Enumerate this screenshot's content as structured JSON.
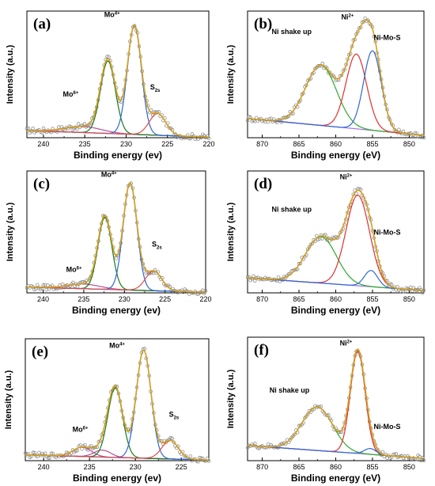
{
  "chart_data": [
    {
      "type": "line",
      "panel": "(a)",
      "xlabel": "Binding energy (ev)",
      "ylabel": "Intensity (a.u.)",
      "xlim": [
        242,
        220
      ],
      "xticks": [
        240,
        235,
        230,
        225,
        220
      ],
      "ylim": [
        0,
        1.05
      ],
      "background": {
        "start": 0.06,
        "end": 0.005
      },
      "peaks": [
        {
          "label": "Mo6+",
          "center": 235.2,
          "amp": 0.05,
          "width": 2.2,
          "color": "#b0509a"
        },
        {
          "label": "Mo4+",
          "center": 232.2,
          "amp": 0.6,
          "width": 0.9,
          "color": "#1a7a1a"
        },
        {
          "label": "Mo4+",
          "center": 229.0,
          "amp": 0.9,
          "width": 0.85,
          "color": "#2d67d8"
        },
        {
          "label": "S2s",
          "center": 226.2,
          "amp": 0.18,
          "width": 1.0,
          "color": "#e04a4a"
        }
      ],
      "annotations": [
        {
          "text": "Mo",
          "sup": "6+",
          "sub": "",
          "x": 236.7,
          "y": 0.34
        },
        {
          "text": "Mo",
          "sup": "4+",
          "sub": "",
          "x": 231.7,
          "y": 1.0
        },
        {
          "text": "S",
          "sup": "",
          "sub": "2s",
          "x": 226.5,
          "y": 0.4
        }
      ]
    },
    {
      "type": "line",
      "panel": "(b)",
      "xlabel": "Binding energy (eV)",
      "ylabel": "Intensity (a.u.)",
      "xlim": [
        872,
        848
      ],
      "xticks": [
        870,
        865,
        860,
        855,
        850
      ],
      "ylim": [
        0,
        1.05
      ],
      "background": {
        "start": 0.16,
        "end": 0.02
      },
      "peaks": [
        {
          "label": "Ni shake up",
          "center": 862,
          "amp": 0.5,
          "width": 2.1,
          "color": "#2fa82f"
        },
        {
          "label": "Ni2+",
          "center": 857.2,
          "amp": 0.62,
          "width": 1.4,
          "color": "#e03030"
        },
        {
          "label": "Ni-Mo-S",
          "center": 855.0,
          "amp": 0.66,
          "width": 1.2,
          "color": "#2d67d8"
        }
      ],
      "annotations": [
        {
          "text": "Ni shake up",
          "sup": "",
          "sub": "",
          "x": 866.0,
          "y": 0.86
        },
        {
          "text": "Ni",
          "sup": "2+",
          "sub": "",
          "x": 858.4,
          "y": 0.98
        },
        {
          "text": "Ni-Mo-S",
          "sup": "",
          "sub": "",
          "x": 853.0,
          "y": 0.81
        }
      ]
    },
    {
      "type": "line",
      "panel": "(c)",
      "xlabel": "Binding energy (ev)",
      "ylabel": "Intensity (a.u.)",
      "xlim": [
        242,
        220
      ],
      "xticks": [
        240,
        235,
        230,
        225,
        220
      ],
      "ylim": [
        0,
        1.05
      ],
      "background": {
        "start": 0.05,
        "end": 0.005
      },
      "peaks": [
        {
          "label": "Mo6+",
          "center": 235.0,
          "amp": 0.04,
          "width": 2.0,
          "color": "#b0509a"
        },
        {
          "label": "Mo4+",
          "center": 232.4,
          "amp": 0.62,
          "width": 0.85,
          "color": "#1a7a1a"
        },
        {
          "label": "Mo4+",
          "center": 229.3,
          "amp": 0.92,
          "width": 0.85,
          "color": "#2d67d8"
        },
        {
          "label": "S2s",
          "center": 226.4,
          "amp": 0.17,
          "width": 1.0,
          "color": "#e04a4a"
        }
      ],
      "annotations": [
        {
          "text": "Mo",
          "sup": "6+",
          "sub": "",
          "x": 236.2,
          "y": 0.18
        },
        {
          "text": "Mo",
          "sup": "4+",
          "sub": "",
          "x": 231.9,
          "y": 1.0
        },
        {
          "text": "S",
          "sup": "",
          "sub": "2s",
          "x": 226.0,
          "y": 0.4
        }
      ]
    },
    {
      "type": "line",
      "panel": "(d)",
      "xlabel": "Binding energy (eV)",
      "ylabel": "Intensity (a.u.)",
      "xlim": [
        872,
        848
      ],
      "xticks": [
        870,
        865,
        860,
        855,
        850
      ],
      "ylim": [
        0,
        1.05
      ],
      "background": {
        "start": 0.13,
        "end": 0.02
      },
      "peaks": [
        {
          "label": "Ni shake up",
          "center": 862,
          "amp": 0.4,
          "width": 2.1,
          "color": "#2fa82f"
        },
        {
          "label": "Ni2+",
          "center": 857.0,
          "amp": 0.78,
          "width": 1.6,
          "color": "#e03030"
        },
        {
          "label": "Ni-Mo-S",
          "center": 855.2,
          "amp": 0.14,
          "width": 0.9,
          "color": "#2d67d8"
        }
      ],
      "annotations": [
        {
          "text": "Ni shake up",
          "sup": "",
          "sub": "",
          "x": 866.0,
          "y": 0.7
        },
        {
          "text": "Ni",
          "sup": "2+",
          "sub": "",
          "x": 858.6,
          "y": 0.98
        },
        {
          "text": "Ni-Mo-S",
          "sup": "",
          "sub": "",
          "x": 853.0,
          "y": 0.5
        }
      ]
    },
    {
      "type": "line",
      "panel": "(e)",
      "xlabel": "Binding energy (ev)",
      "ylabel": "Intensity (a.u.)",
      "xlim": [
        242,
        222
      ],
      "xticks": [
        240,
        235,
        230,
        225
      ],
      "ylim": [
        0,
        1.05
      ],
      "background": {
        "start": 0.05,
        "end": 0.005
      },
      "peaks": [
        {
          "label": "Mo6+",
          "center": 235.8,
          "amp": 0.08,
          "width": 1.0,
          "color": "#b0509a"
        },
        {
          "label": "Mo6+",
          "center": 233.6,
          "amp": 0.06,
          "width": 0.9,
          "color": "#b0509a"
        },
        {
          "label": "Mo4+",
          "center": 232.2,
          "amp": 0.6,
          "width": 0.8,
          "color": "#1a7a1a"
        },
        {
          "label": "Mo4+",
          "center": 229.1,
          "amp": 0.93,
          "width": 0.8,
          "color": "#2d67d8"
        },
        {
          "label": "S2s",
          "center": 226.2,
          "amp": 0.16,
          "width": 0.9,
          "color": "#e04a4a"
        }
      ],
      "annotations": [
        {
          "text": "Mo",
          "sup": "6+",
          "sub": "",
          "x": 236.0,
          "y": 0.25
        },
        {
          "text": "Mo",
          "sup": "4+",
          "sub": "",
          "x": 232.0,
          "y": 0.97
        },
        {
          "text": "S",
          "sup": "",
          "sub": "2s",
          "x": 225.8,
          "y": 0.38
        }
      ]
    },
    {
      "type": "line",
      "panel": "(f)",
      "xlabel": "Binding energy (eV)",
      "ylabel": "Intensity (a.u.)",
      "xlim": [
        872,
        848
      ],
      "xticks": [
        870,
        865,
        860,
        855,
        850
      ],
      "ylim": [
        0,
        1.05
      ],
      "background": {
        "start": 0.13,
        "end": 0.02
      },
      "peaks": [
        {
          "label": "Ni shake up",
          "center": 862.5,
          "amp": 0.37,
          "width": 2.1,
          "color": "#2fa82f"
        },
        {
          "label": "Ni2+",
          "center": 857.0,
          "amp": 0.87,
          "width": 1.0,
          "color": "#e03030"
        },
        {
          "label": "Ni-Mo-S",
          "center": 855.3,
          "amp": 0.05,
          "width": 0.8,
          "color": "#2d67d8"
        }
      ],
      "annotations": [
        {
          "text": "Ni shake up",
          "sup": "",
          "sub": "",
          "x": 866.3,
          "y": 0.58
        },
        {
          "text": "Ni",
          "sup": "2+",
          "sub": "",
          "x": 858.6,
          "y": 0.98
        },
        {
          "text": "Ni-Mo-S",
          "sup": "",
          "sub": "",
          "x": 853.0,
          "y": 0.27
        }
      ]
    }
  ],
  "colors": {
    "envelope": "#d4a020",
    "background": "#a070e0",
    "raw_points": "#808080"
  }
}
